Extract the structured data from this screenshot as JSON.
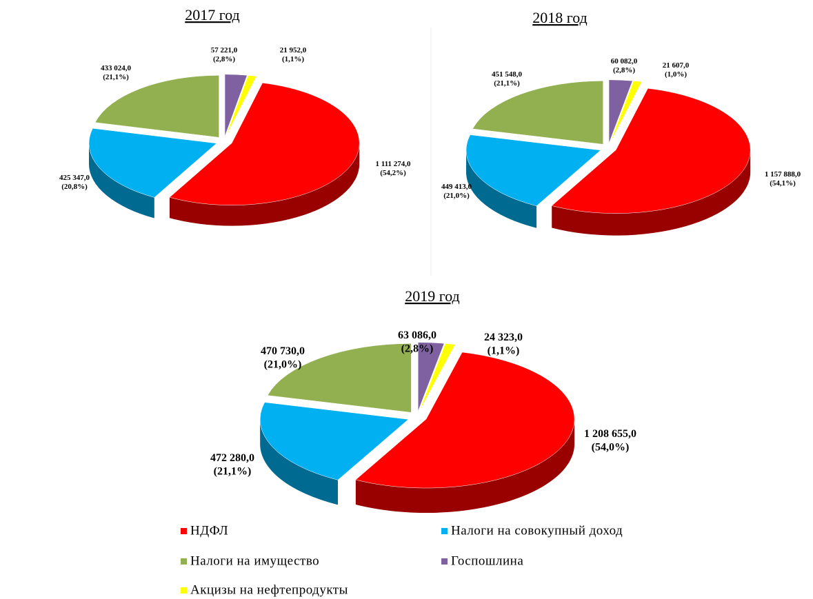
{
  "chart_data": [
    {
      "type": "pie",
      "title": "2017 год",
      "values": [
        1111274.0,
        425347.0,
        433024.0,
        57221.0,
        21952.0
      ],
      "value_labels": [
        "1 111 274,0",
        "425 347,0",
        "433 024,0",
        "57 221,0",
        "21 952,0"
      ],
      "percents": [
        54.2,
        20.8,
        21.1,
        2.8,
        1.1
      ],
      "percent_labels": [
        "(54,2%)",
        "(20,8%)",
        "(21,1%)",
        "(2,8%)",
        "(1,1%)"
      ],
      "colors": [
        "#ff0000",
        "#00b0f0",
        "#92b050",
        "#7f60a0",
        "#ffff00"
      ]
    },
    {
      "type": "pie",
      "title": "2018 год",
      "values": [
        1157888.0,
        449413.0,
        451548.0,
        60082.0,
        21607.0
      ],
      "value_labels": [
        "1 157 888,0",
        "449 413,0",
        "451 548,0",
        "60 082,0",
        "21 607,0"
      ],
      "percents": [
        54.1,
        21.0,
        21.1,
        2.8,
        1.0
      ],
      "percent_labels": [
        "(54,1%)",
        "(21,0%)",
        "(21,1%)",
        "(2,8%)",
        "(1,0%)"
      ],
      "colors": [
        "#ff0000",
        "#00b0f0",
        "#92b050",
        "#7f60a0",
        "#ffff00"
      ]
    },
    {
      "type": "pie",
      "title": "2019 год",
      "categories": [
        "НДФЛ",
        "Налоги на совокупный доход",
        "Налоги на имущество",
        "Госпошлина",
        "Акцизы на нефтепродукты"
      ],
      "values": [
        1208655.0,
        472280.0,
        470730.0,
        63086.0,
        24323.0
      ],
      "value_labels": [
        "1 208 655,0",
        "472 280,0",
        "470 730,0",
        "63 086,0",
        "24 323,0"
      ],
      "percents": [
        54.0,
        21.1,
        21.0,
        2.8,
        1.1
      ],
      "percent_labels": [
        "(54,0%)",
        "(21,1%)",
        "(21,0%)",
        "(2,8%)",
        "(1,1%)"
      ],
      "colors": [
        "#ff0000",
        "#00b0f0",
        "#92b050",
        "#7f60a0",
        "#ffff00"
      ]
    }
  ]
}
